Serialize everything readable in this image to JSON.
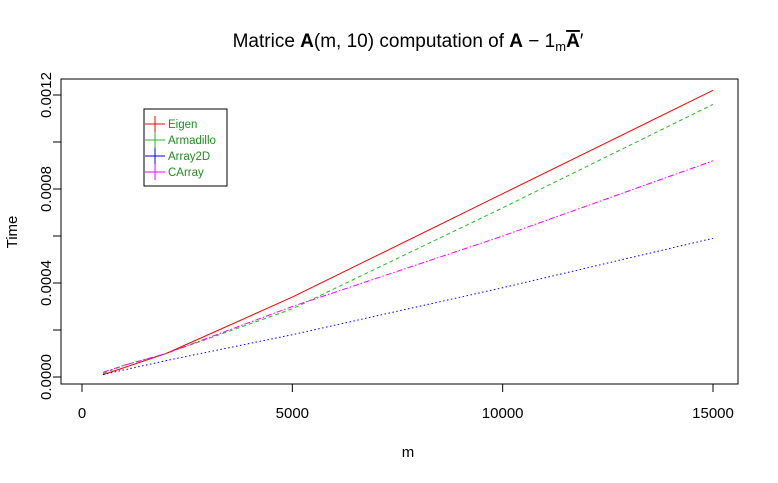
{
  "chart_data": {
    "type": "line",
    "title": {
      "prefix": "Matrice ",
      "bold_a": "A",
      "args": "(m, 10)",
      "middle": " computation of ",
      "bold_a2": "A",
      "minus": " − 1",
      "sub_m": "m",
      "bold_abar": "A",
      "prime": "′"
    },
    "xlabel": "m",
    "ylabel": "Time",
    "xlim": [
      0,
      15000
    ],
    "ylim": [
      0,
      0.0012
    ],
    "x_ticks": [
      0,
      5000,
      10000,
      15000
    ],
    "x_tick_labels": [
      "0",
      "5000",
      "10000",
      "15000"
    ],
    "y_ticks": [
      0,
      0.0002,
      0.0004,
      0.0006,
      0.0008,
      0.001,
      0.0012
    ],
    "y_tick_labels": [
      "0.0000",
      "",
      "0.0004",
      "",
      "0.0008",
      "",
      "0.0012"
    ],
    "grid": false,
    "legend_position": "top-left",
    "x": [
      500,
      1000,
      2000,
      5000,
      10000,
      15000
    ],
    "series": [
      {
        "name": "Eigen",
        "color": "#FF0000",
        "dash": "none",
        "values": [
          1e-05,
          4e-05,
          0.0001,
          0.00034,
          0.00078,
          0.00122
        ]
      },
      {
        "name": "Armadillo",
        "color": "#22BB22",
        "dash": "4,3",
        "values": [
          1.5e-05,
          5e-05,
          0.0001,
          0.00029,
          0.00072,
          0.00116
        ]
      },
      {
        "name": "Array2D",
        "color": "#0000FF",
        "dash": "1.5,2.5",
        "values": [
          1e-05,
          3e-05,
          7e-05,
          0.00018,
          0.00038,
          0.00059
        ]
      },
      {
        "name": "CArray",
        "color": "#FF00FF",
        "dash": "6,2,1.5,2",
        "values": [
          2e-05,
          5e-05,
          0.0001,
          0.0003,
          0.0006,
          0.00092
        ]
      }
    ]
  }
}
